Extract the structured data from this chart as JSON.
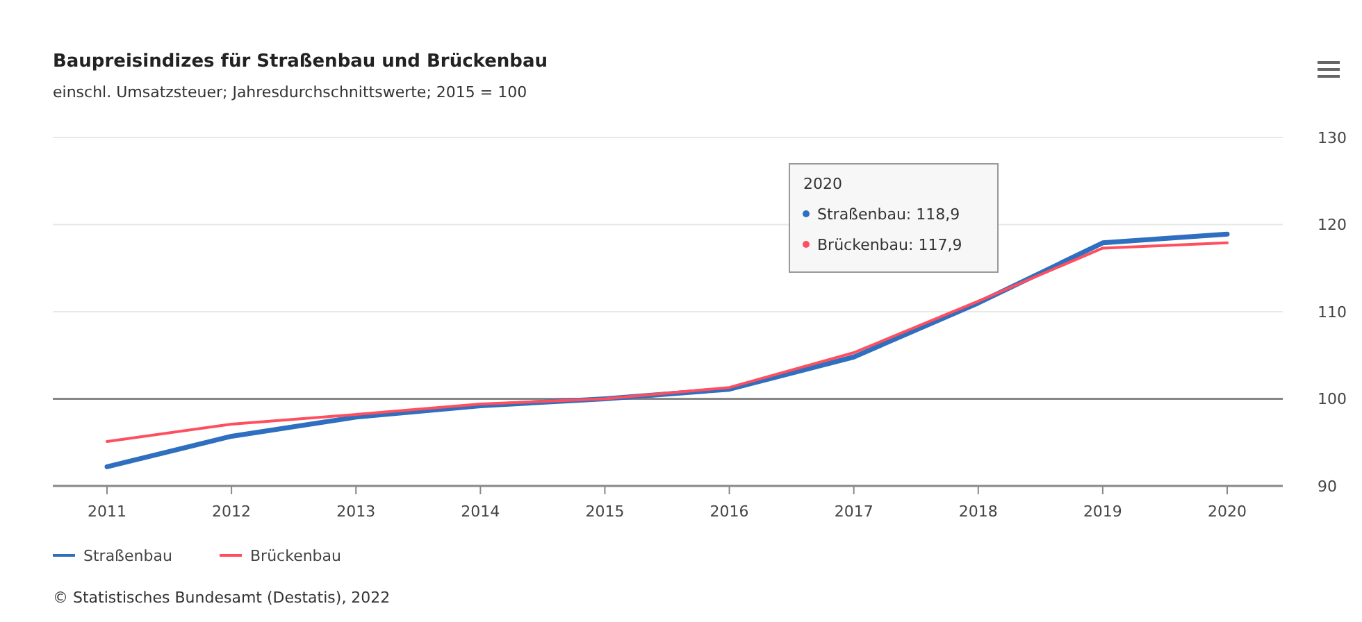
{
  "chart_data": {
    "type": "line",
    "title": "Baupreisindizes für Straßenbau und Brückenbau",
    "subtitle": "einschl. Umsatzsteuer; Jahresdurchschnittswerte; 2015 = 100",
    "categories": [
      "2011",
      "2012",
      "2013",
      "2014",
      "2015",
      "2016",
      "2017",
      "2018",
      "2019",
      "2020"
    ],
    "series": [
      {
        "name": "Straßenbau",
        "color": "#2f6fbf",
        "values": [
          92.2,
          95.7,
          97.9,
          99.2,
          100,
          101.1,
          104.8,
          111.0,
          117.9,
          118.9
        ]
      },
      {
        "name": "Brückenbau",
        "color": "#ff4f5e",
        "values": [
          95.1,
          97.1,
          98.2,
          99.4,
          100,
          101.3,
          105.3,
          111.2,
          117.3,
          117.9
        ]
      }
    ],
    "ylim": [
      90,
      130
    ],
    "yticks": [
      90,
      100,
      110,
      120,
      130
    ],
    "grid": "y",
    "legend": "bottom",
    "ref_lines": [
      {
        "axis": "y",
        "value": 100,
        "color": "#888888"
      }
    ],
    "annotations": [
      "2020",
      "Straßenbau: 118,9",
      "Brückenbau: 117,9",
      "© Statistisches Bundesamt (Destatis), 2022"
    ]
  }
}
